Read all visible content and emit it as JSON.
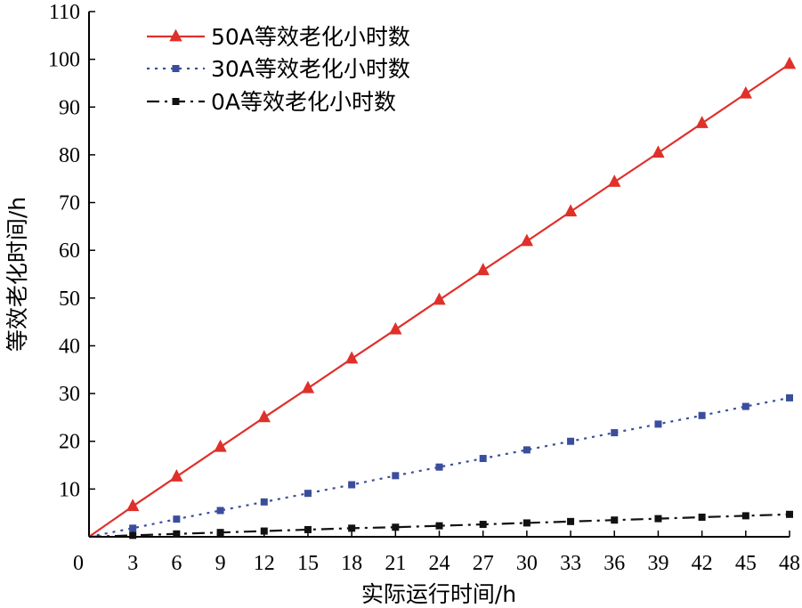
{
  "chart_data": {
    "type": "line",
    "title": "",
    "xlabel": "实际运行时间/h",
    "ylabel": "等效老化时间/h",
    "x": [
      0,
      3,
      6,
      9,
      12,
      15,
      18,
      21,
      24,
      27,
      30,
      33,
      36,
      39,
      42,
      45,
      48
    ],
    "xticks": [
      "0",
      "3",
      "6",
      "9",
      "12",
      "15",
      "18",
      "21",
      "24",
      "27",
      "30",
      "33",
      "36",
      "39",
      "42",
      "45",
      "48"
    ],
    "yticks": [
      "10",
      "20",
      "30",
      "40",
      "50",
      "60",
      "70",
      "80",
      "90",
      "100",
      "110"
    ],
    "xlim": [
      0,
      48
    ],
    "ylim": [
      0,
      110
    ],
    "grid": false,
    "legend_position": "top-left",
    "series": [
      {
        "name": "50A等效老化小时数",
        "color": "#e0302a",
        "marker": "triangle",
        "line_style": "solid",
        "values": [
          0,
          6.4,
          12.6,
          18.8,
          25.0,
          31.1,
          37.3,
          43.4,
          49.6,
          55.8,
          61.9,
          68.1,
          74.3,
          80.4,
          86.6,
          92.8,
          99.0
        ]
      },
      {
        "name": "30A等效老化小时数",
        "color": "#3a4e9c",
        "marker": "square",
        "line_style": "dotted",
        "values": [
          0,
          1.8,
          3.7,
          5.5,
          7.3,
          9.1,
          10.9,
          12.8,
          14.6,
          16.4,
          18.2,
          20.0,
          21.8,
          23.6,
          25.4,
          27.3,
          29.1
        ]
      },
      {
        "name": "0A等效老化小时数",
        "color": "#111111",
        "marker": "square",
        "line_style": "dashdot",
        "values": [
          0,
          0.3,
          0.6,
          0.9,
          1.2,
          1.5,
          1.8,
          2.0,
          2.3,
          2.6,
          2.9,
          3.2,
          3.5,
          3.8,
          4.1,
          4.4,
          4.7
        ]
      }
    ]
  }
}
